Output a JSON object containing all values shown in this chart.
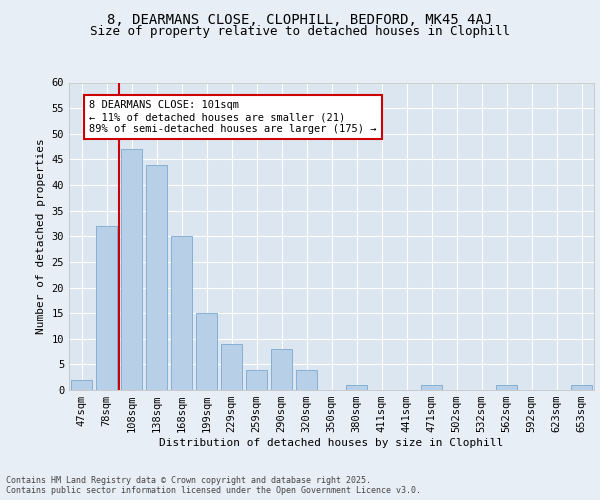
{
  "title1": "8, DEARMANS CLOSE, CLOPHILL, BEDFORD, MK45 4AJ",
  "title2": "Size of property relative to detached houses in Clophill",
  "xlabel": "Distribution of detached houses by size in Clophill",
  "ylabel": "Number of detached properties",
  "categories": [
    "47sqm",
    "78sqm",
    "108sqm",
    "138sqm",
    "168sqm",
    "199sqm",
    "229sqm",
    "259sqm",
    "290sqm",
    "320sqm",
    "350sqm",
    "380sqm",
    "411sqm",
    "441sqm",
    "471sqm",
    "502sqm",
    "532sqm",
    "562sqm",
    "592sqm",
    "623sqm",
    "653sqm"
  ],
  "values": [
    2,
    32,
    47,
    44,
    30,
    15,
    9,
    4,
    8,
    4,
    0,
    1,
    0,
    0,
    1,
    0,
    0,
    1,
    0,
    0,
    1
  ],
  "bar_color": "#b8cfe8",
  "bar_edge_color": "#7aaad0",
  "vline_color": "#cc0000",
  "annotation_text": "8 DEARMANS CLOSE: 101sqm\n← 11% of detached houses are smaller (21)\n89% of semi-detached houses are larger (175) →",
  "annotation_box_color": "#ffffff",
  "annotation_box_edge_color": "#cc0000",
  "ylim": [
    0,
    60
  ],
  "yticks": [
    0,
    5,
    10,
    15,
    20,
    25,
    30,
    35,
    40,
    45,
    50,
    55,
    60
  ],
  "background_color": "#e8eef5",
  "plot_background": "#dce6f0",
  "footer_text": "Contains HM Land Registry data © Crown copyright and database right 2025.\nContains public sector information licensed under the Open Government Licence v3.0.",
  "title_fontsize": 10,
  "title2_fontsize": 9,
  "axis_label_fontsize": 8,
  "tick_fontsize": 7.5,
  "annotation_fontsize": 7.5,
  "footer_fontsize": 6
}
